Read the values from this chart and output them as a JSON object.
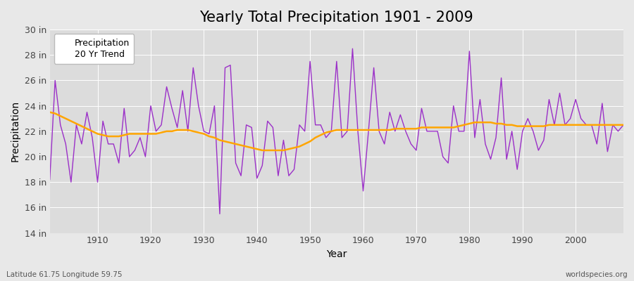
{
  "title": "Yearly Total Precipitation 1901 - 2009",
  "xlabel": "Year",
  "ylabel": "Precipitation",
  "lat_lon_label": "Latitude 61.75 Longitude 59.75",
  "watermark": "worldspecies.org",
  "years": [
    1901,
    1902,
    1903,
    1904,
    1905,
    1906,
    1907,
    1908,
    1909,
    1910,
    1911,
    1912,
    1913,
    1914,
    1915,
    1916,
    1917,
    1918,
    1919,
    1920,
    1921,
    1922,
    1923,
    1924,
    1925,
    1926,
    1927,
    1928,
    1929,
    1930,
    1931,
    1932,
    1933,
    1934,
    1935,
    1936,
    1937,
    1938,
    1939,
    1940,
    1941,
    1942,
    1943,
    1944,
    1945,
    1946,
    1947,
    1948,
    1949,
    1950,
    1951,
    1952,
    1953,
    1954,
    1955,
    1956,
    1957,
    1958,
    1959,
    1960,
    1961,
    1962,
    1963,
    1964,
    1965,
    1966,
    1967,
    1968,
    1969,
    1970,
    1971,
    1972,
    1973,
    1974,
    1975,
    1976,
    1977,
    1978,
    1979,
    1980,
    1981,
    1982,
    1983,
    1984,
    1985,
    1986,
    1987,
    1988,
    1989,
    1990,
    1991,
    1992,
    1993,
    1994,
    1995,
    1996,
    1997,
    1998,
    1999,
    2000,
    2001,
    2002,
    2003,
    2004,
    2005,
    2006,
    2007,
    2008,
    2009
  ],
  "precip": [
    18.2,
    26.0,
    22.5,
    21.0,
    18.0,
    22.5,
    21.0,
    23.5,
    21.5,
    18.0,
    22.8,
    21.0,
    21.0,
    19.5,
    23.8,
    20.0,
    20.5,
    21.5,
    20.0,
    24.0,
    22.0,
    22.5,
    25.5,
    23.8,
    22.3,
    25.2,
    22.0,
    27.0,
    24.0,
    22.0,
    21.8,
    24.0,
    15.5,
    27.0,
    27.2,
    19.5,
    18.5,
    22.5,
    22.3,
    18.3,
    19.3,
    22.8,
    22.3,
    18.5,
    21.3,
    18.5,
    19.0,
    22.5,
    22.0,
    27.5,
    22.5,
    22.5,
    21.5,
    22.0,
    27.5,
    21.5,
    22.0,
    28.5,
    22.0,
    17.3,
    22.0,
    27.0,
    22.0,
    21.0,
    23.5,
    22.0,
    23.3,
    22.0,
    21.0,
    20.5,
    23.8,
    22.0,
    22.0,
    22.0,
    20.0,
    19.5,
    24.0,
    22.0,
    22.0,
    28.3,
    21.5,
    24.5,
    21.0,
    19.8,
    21.5,
    26.2,
    19.8,
    22.0,
    19.0,
    22.0,
    23.0,
    22.0,
    20.5,
    21.3,
    24.5,
    22.5,
    25.0,
    22.5,
    23.0,
    24.5,
    23.0,
    22.5,
    22.5,
    21.0,
    24.2,
    20.4,
    22.5,
    22.0,
    22.5
  ],
  "trend_years": [
    1901,
    1902,
    1903,
    1904,
    1905,
    1906,
    1907,
    1908,
    1909,
    1910,
    1911,
    1912,
    1913,
    1914,
    1915,
    1916,
    1917,
    1918,
    1919,
    1920,
    1921,
    1922,
    1923,
    1924,
    1925,
    1926,
    1927,
    1928,
    1929,
    1930,
    1931,
    1932,
    1933,
    1934,
    1935,
    1936,
    1937,
    1938,
    1939,
    1940,
    1941,
    1942,
    1943,
    1944,
    1945,
    1946,
    1947,
    1948,
    1949,
    1950,
    1951,
    1952,
    1953,
    1954,
    1955,
    1956,
    1957,
    1958,
    1959,
    1960,
    1961,
    1962,
    1963,
    1964,
    1965,
    1966,
    1967,
    1968,
    1969,
    1970,
    1971,
    1972,
    1973,
    1974,
    1975,
    1976,
    1977,
    1978,
    1979,
    1980,
    1981,
    1982,
    1983,
    1984,
    1985,
    1986,
    1987,
    1988,
    1989,
    1990,
    1991,
    1992,
    1993,
    1994,
    1995,
    1996,
    1997,
    1998,
    1999,
    2000,
    2001,
    2002,
    2003,
    2004,
    2005,
    2006,
    2007,
    2008,
    2009
  ],
  "trend": [
    23.5,
    23.4,
    23.2,
    23.0,
    22.8,
    22.6,
    22.4,
    22.2,
    22.0,
    21.8,
    21.7,
    21.6,
    21.6,
    21.6,
    21.7,
    21.8,
    21.8,
    21.8,
    21.8,
    21.8,
    21.8,
    21.9,
    22.0,
    22.0,
    22.1,
    22.1,
    22.1,
    22.0,
    21.9,
    21.8,
    21.6,
    21.5,
    21.3,
    21.2,
    21.1,
    21.0,
    20.9,
    20.8,
    20.7,
    20.6,
    20.5,
    20.5,
    20.5,
    20.5,
    20.5,
    20.6,
    20.7,
    20.8,
    21.0,
    21.2,
    21.5,
    21.7,
    21.9,
    22.0,
    22.1,
    22.1,
    22.1,
    22.1,
    22.1,
    22.1,
    22.1,
    22.1,
    22.1,
    22.1,
    22.1,
    22.2,
    22.2,
    22.2,
    22.2,
    22.2,
    22.3,
    22.3,
    22.3,
    22.3,
    22.3,
    22.3,
    22.3,
    22.4,
    22.5,
    22.6,
    22.7,
    22.7,
    22.7,
    22.7,
    22.6,
    22.6,
    22.5,
    22.5,
    22.4,
    22.4,
    22.4,
    22.4,
    22.4,
    22.4,
    22.5,
    22.5,
    22.5,
    22.5,
    22.5,
    22.5,
    22.5,
    22.5,
    22.5,
    22.5,
    22.5,
    22.5,
    22.5,
    22.5,
    22.5
  ],
  "precip_color": "#9B30C8",
  "trend_color": "#FFA500",
  "bg_color": "#E8E8E8",
  "plot_bg_color": "#DCDCDC",
  "grid_color": "#FFFFFF",
  "ylim": [
    14,
    30
  ],
  "yticks": [
    14,
    16,
    18,
    20,
    22,
    24,
    26,
    28,
    30
  ],
  "xticks": [
    1910,
    1920,
    1930,
    1940,
    1950,
    1960,
    1970,
    1980,
    1990,
    2000
  ],
  "title_fontsize": 15,
  "axis_label_fontsize": 10,
  "tick_fontsize": 9,
  "legend_fontsize": 9
}
